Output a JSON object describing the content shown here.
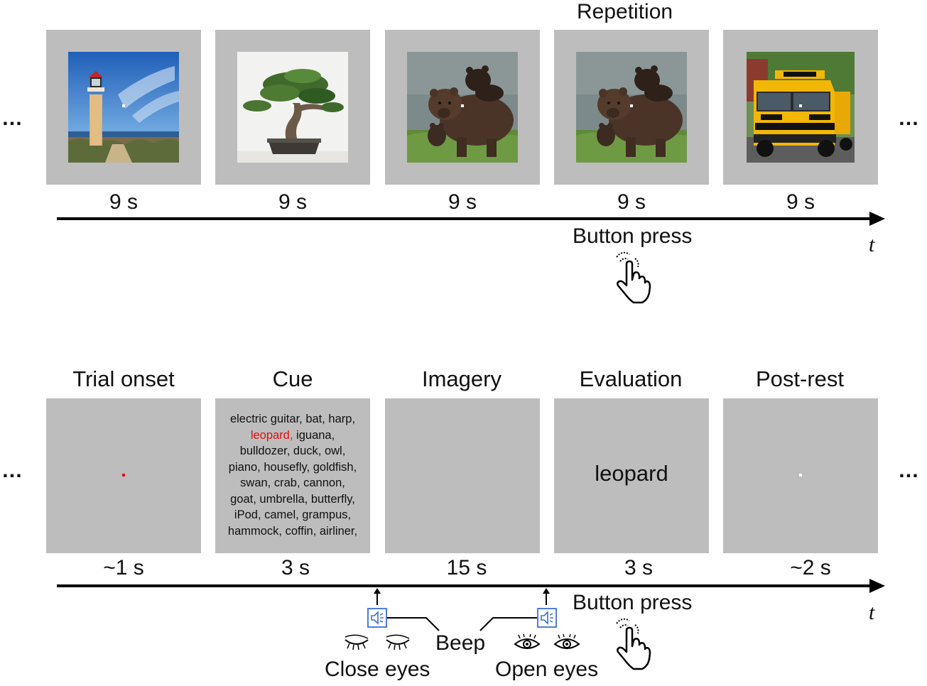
{
  "top_row": {
    "repetition_label": "Repetition",
    "durations": [
      "9 s",
      "9 s",
      "9 s",
      "9 s",
      "9 s"
    ],
    "images": [
      "lighthouse",
      "bonsai-tree",
      "bear",
      "bear",
      "school-bus"
    ],
    "button_press_label": "Button press",
    "time_axis_label": "t",
    "ellipsis": "…"
  },
  "bottom_row": {
    "phases": [
      "Trial onset",
      "Cue",
      "Imagery",
      "Evaluation",
      "Post-rest"
    ],
    "durations": [
      "~1 s",
      "3 s",
      "15 s",
      "3 s",
      "~2 s"
    ],
    "cue_lines": [
      "electric guitar, bat, harp,",
      "iguana,",
      "bulldozer, duck, owl,",
      "piano, housefly, goldfish,",
      "swan, crab, cannon,",
      "goat, umbrella, butterfly,",
      "iPod, camel, grampus,",
      "hammock, coffin, airliner,"
    ],
    "cue_highlight": "leopard,",
    "evaluation_word": "leopard",
    "button_press_label": "Button press",
    "time_axis_label": "t",
    "beep_label": "Beep",
    "close_eyes_label": "Close eyes",
    "open_eyes_label": "Open eyes",
    "ellipsis": "…"
  },
  "colors": {
    "panel": "#bdbdbd",
    "highlight": "#e01010",
    "speaker": "#3a6fd8"
  }
}
